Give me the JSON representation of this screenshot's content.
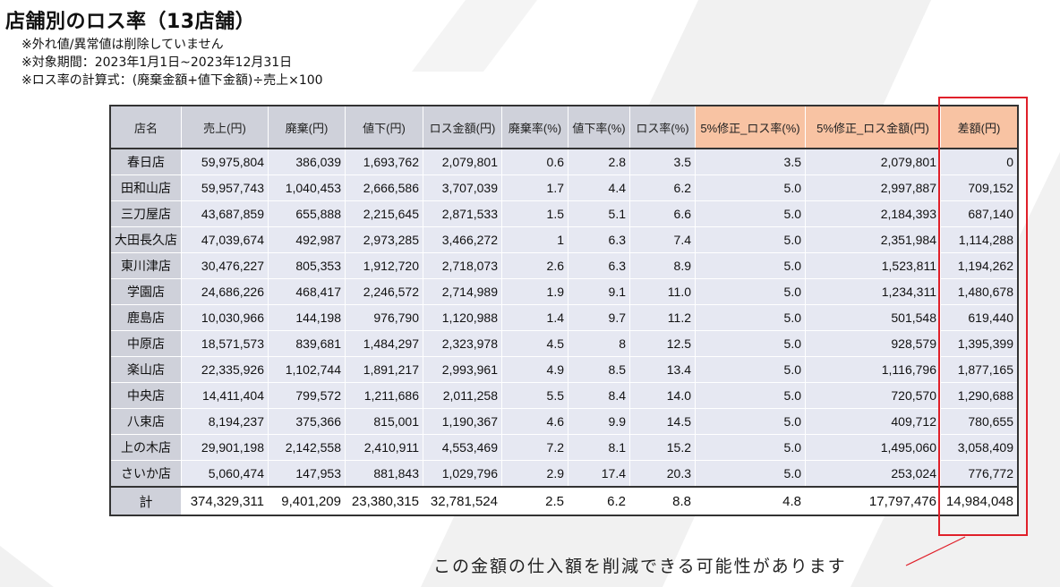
{
  "title": "店舗別のロス率（13店舗）",
  "notes": [
    "※外れ値/異常値は削除していません",
    "※対象期間：2023年1月1日~2023年12月31日",
    "※ロス率の計算式：(廃棄金額+値下金額)÷売上×100"
  ],
  "table": {
    "headers": [
      "店名",
      "売上(円)",
      "廃棄(円)",
      "値下(円)",
      "ロス金額(円)",
      "廃棄率(%)",
      "値下率(%)",
      "ロス率(%)",
      "5%修正_ロス率(%)",
      "5%修正_ロス金額(円)",
      "差額(円)"
    ],
    "rows": [
      [
        "春日店",
        "59,975,804",
        "386,039",
        "1,693,762",
        "2,079,801",
        "0.6",
        "2.8",
        "3.5",
        "3.5",
        "2,079,801",
        "0"
      ],
      [
        "田和山店",
        "59,957,743",
        "1,040,453",
        "2,666,586",
        "3,707,039",
        "1.7",
        "4.4",
        "6.2",
        "5.0",
        "2,997,887",
        "709,152"
      ],
      [
        "三刀屋店",
        "43,687,859",
        "655,888",
        "2,215,645",
        "2,871,533",
        "1.5",
        "5.1",
        "6.6",
        "5.0",
        "2,184,393",
        "687,140"
      ],
      [
        "大田長久店",
        "47,039,674",
        "492,987",
        "2,973,285",
        "3,466,272",
        "1",
        "6.3",
        "7.4",
        "5.0",
        "2,351,984",
        "1,114,288"
      ],
      [
        "東川津店",
        "30,476,227",
        "805,353",
        "1,912,720",
        "2,718,073",
        "2.6",
        "6.3",
        "8.9",
        "5.0",
        "1,523,811",
        "1,194,262"
      ],
      [
        "学園店",
        "24,686,226",
        "468,417",
        "2,246,572",
        "2,714,989",
        "1.9",
        "9.1",
        "11.0",
        "5.0",
        "1,234,311",
        "1,480,678"
      ],
      [
        "鹿島店",
        "10,030,966",
        "144,198",
        "976,790",
        "1,120,988",
        "1.4",
        "9.7",
        "11.2",
        "5.0",
        "501,548",
        "619,440"
      ],
      [
        "中原店",
        "18,571,573",
        "839,681",
        "1,484,297",
        "2,323,978",
        "4.5",
        "8",
        "12.5",
        "5.0",
        "928,579",
        "1,395,399"
      ],
      [
        "楽山店",
        "22,335,926",
        "1,102,744",
        "1,891,217",
        "2,993,961",
        "4.9",
        "8.5",
        "13.4",
        "5.0",
        "1,116,796",
        "1,877,165"
      ],
      [
        "中央店",
        "14,411,404",
        "799,572",
        "1,211,686",
        "2,011,258",
        "5.5",
        "8.4",
        "14.0",
        "5.0",
        "720,570",
        "1,290,688"
      ],
      [
        "八束店",
        "8,194,237",
        "375,366",
        "815,001",
        "1,190,367",
        "4.6",
        "9.9",
        "14.5",
        "5.0",
        "409,712",
        "780,655"
      ],
      [
        "上の木店",
        "29,901,198",
        "2,142,558",
        "2,410,911",
        "4,553,469",
        "7.2",
        "8.1",
        "15.2",
        "5.0",
        "1,495,060",
        "3,058,409"
      ],
      [
        "さいか店",
        "5,060,474",
        "147,953",
        "881,843",
        "1,029,796",
        "2.9",
        "17.4",
        "20.3",
        "5.0",
        "253,024",
        "776,772"
      ]
    ],
    "total": [
      "計",
      "374,329,311",
      "9,401,209",
      "23,380,315",
      "32,781,524",
      "2.5",
      "6.2",
      "8.8",
      "4.8",
      "17,797,476",
      "14,984,048"
    ]
  },
  "callout": "この金額の仕入額を削減できる可能性があります",
  "colors": {
    "header_gray": "#cfd1da",
    "header_orange": "#f8c3a3",
    "cell_bg": "#e6e8f2",
    "highlight_red": "#e0202a"
  }
}
